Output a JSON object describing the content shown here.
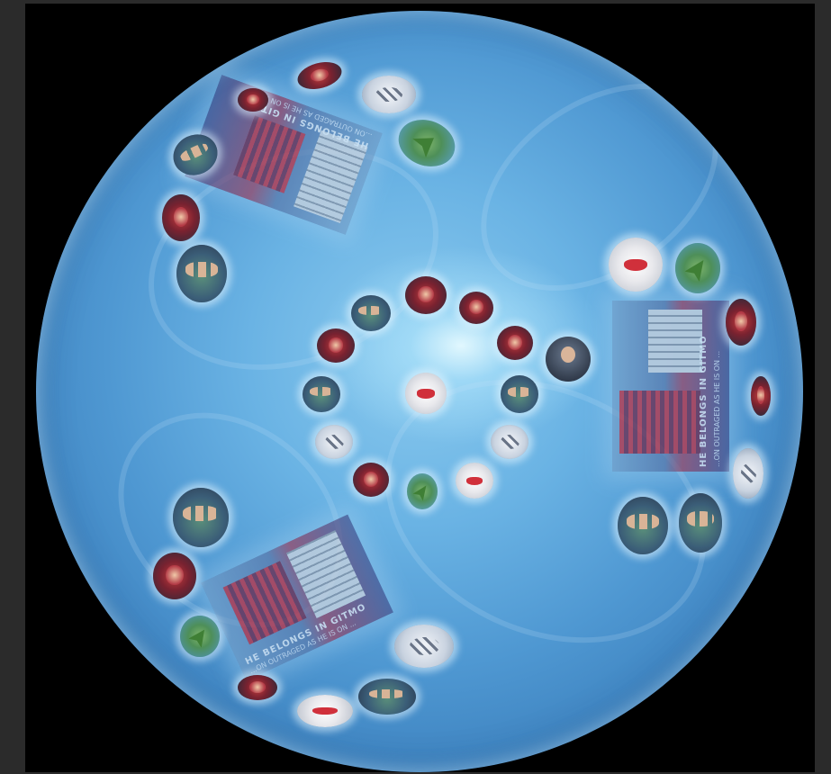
{
  "scene": {
    "background": "#000000",
    "frame_color": "#2b2b2b",
    "sphere_colors": {
      "core": "#eafaff",
      "mid": "#6ab3e4",
      "edge": "#3a7ab6"
    }
  },
  "banners": [
    {
      "headline": "HE BELONGS IN GITMO",
      "subline": "...ON OUTRAGED AS HE IS ON ..."
    },
    {
      "headline": "HE BELONGS IN GITMO",
      "subline": "...ON OUTRAGED AS HE IS ON ..."
    },
    {
      "headline": "HE BELONGS IN GITMO",
      "subline": "...ON OUTRAGED AS HE IS ON ..."
    }
  ],
  "thumbnails": {
    "center": {
      "kind": "lips"
    },
    "inner_ring": [
      {
        "kind": "poster"
      },
      {
        "kind": "group"
      },
      {
        "kind": "poster"
      },
      {
        "kind": "poster"
      },
      {
        "kind": "group"
      },
      {
        "kind": "light"
      },
      {
        "kind": "lips"
      },
      {
        "kind": "ship"
      },
      {
        "kind": "poster"
      },
      {
        "kind": "light"
      },
      {
        "kind": "group"
      },
      {
        "kind": "poster"
      }
    ],
    "featured_person": {
      "kind": "person"
    }
  }
}
